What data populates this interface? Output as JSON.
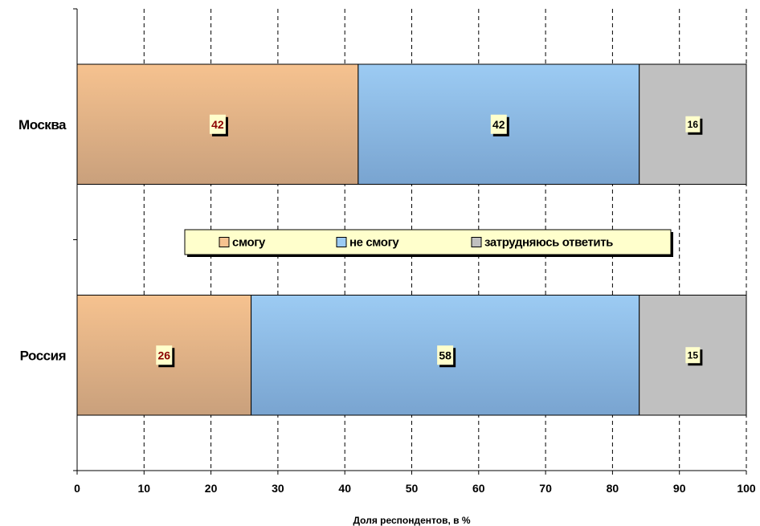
{
  "chart_data": {
    "type": "bar",
    "orientation": "horizontal",
    "stacked": true,
    "categories": [
      "Москва",
      "Россия"
    ],
    "series": [
      {
        "name": "смогу",
        "values": [
          42,
          26
        ],
        "color": "#f6c28f",
        "color_dark": "#c9a07c",
        "label_color": "#8b0000"
      },
      {
        "name": "не смогу",
        "values": [
          42,
          58
        ],
        "color": "#9ccbf3",
        "color_dark": "#79a4d0",
        "label_color": "#000000"
      },
      {
        "name": "затрудняюсь ответить",
        "values": [
          16,
          15
        ],
        "color": "#c0c0c0",
        "color_dark": "#c0c0c0",
        "label_color": "#000000"
      }
    ],
    "xlim": [
      0,
      100
    ],
    "xticks": [
      0,
      10,
      20,
      30,
      40,
      50,
      60,
      70,
      80,
      90,
      100
    ],
    "xlabel": "Доля респондентов, в %",
    "ylabel": "",
    "title": "",
    "grid": "vertical dashed",
    "legend_position": "center",
    "data_label_background": "#ffffcc"
  }
}
